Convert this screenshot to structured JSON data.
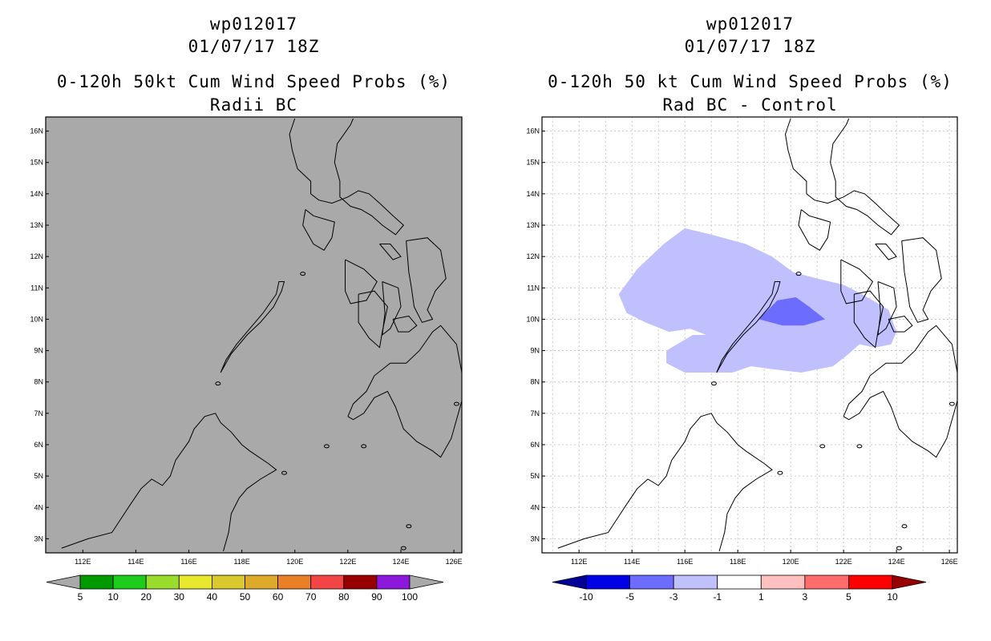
{
  "chart_data": [
    {
      "type": "heatmap",
      "title_lines": [
        "wp012017",
        "01/07/17 18Z",
        "0-120h 50kt Cum Wind Speed Probs (%)",
        "Radii BC"
      ],
      "x_ticks": [
        "112E",
        "114E",
        "116E",
        "118E",
        "120E",
        "122E",
        "124E",
        "126E"
      ],
      "y_ticks": [
        "3N",
        "4N",
        "5N",
        "6N",
        "7N",
        "8N",
        "9N",
        "10N",
        "11N",
        "12N",
        "13N",
        "14N",
        "15N",
        "16N"
      ],
      "xlim": [
        110.6,
        126.3
      ],
      "ylim": [
        2.55,
        16.45
      ],
      "grid": false,
      "background_color": "#a9a9a9",
      "colorbar": {
        "labels": [
          "5",
          "10",
          "20",
          "30",
          "40",
          "50",
          "60",
          "70",
          "80",
          "90",
          "100"
        ],
        "colors": [
          "#009a00",
          "#1ecc1e",
          "#98dc2c",
          "#e8e82e",
          "#d9c92c",
          "#deaa2b",
          "#ea8026",
          "#f24545",
          "#980000",
          "#8c18dc"
        ],
        "end_color": "#a9a9a9"
      }
    },
    {
      "type": "heatmap",
      "title_lines": [
        "wp012017",
        "01/07/17 18Z",
        "0-120h 50 kt Cum Wind Speed Probs (%)",
        "Rad BC - Control"
      ],
      "x_ticks": [
        "112E",
        "114E",
        "116E",
        "118E",
        "120E",
        "122E",
        "124E",
        "126E"
      ],
      "y_ticks": [
        "3N",
        "4N",
        "5N",
        "6N",
        "7N",
        "8N",
        "9N",
        "10N",
        "11N",
        "12N",
        "13N",
        "14N",
        "15N",
        "16N"
      ],
      "xlim": [
        110.6,
        126.3
      ],
      "ylim": [
        2.55,
        16.45
      ],
      "grid": true,
      "regions": [
        {
          "category": "-3 to -1",
          "color": "#c0c0ff",
          "approx_extent_lon": [
            113.5,
            124.0
          ],
          "approx_extent_lat": [
            8.2,
            13.0
          ]
        },
        {
          "category": "-5 to -3",
          "color": "#6c6cff",
          "approx_extent_lon": [
            118.8,
            121.3
          ],
          "approx_extent_lat": [
            9.8,
            10.7
          ]
        }
      ],
      "colorbar": {
        "labels": [
          "-10",
          "-5",
          "-3",
          "-1",
          "1",
          "3",
          "5",
          "10"
        ],
        "colors": [
          "#0000e6",
          "#6c6cff",
          "#c0c0ff",
          "#ffffff",
          "#ffc0c0",
          "#ff6c6c",
          "#ff0000"
        ],
        "low_end_color": "#000096",
        "high_end_color": "#960000"
      }
    }
  ]
}
